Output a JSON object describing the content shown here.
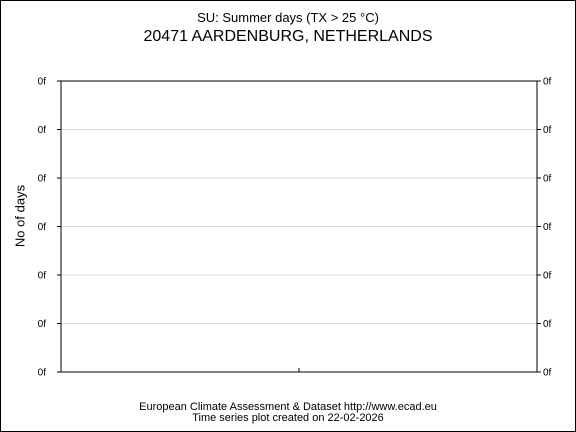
{
  "chart_data": {
    "type": "bar",
    "title": "SU: Summer days (TX > 25 °C)",
    "subtitle": "20471 AARDENBURG, NETHERLANDS",
    "ylabel": "No of days",
    "xlabel": "",
    "y_tick_labels": [
      "0f",
      "0f",
      "0f",
      "0f",
      "0f",
      "0f",
      "0f"
    ],
    "categories": [],
    "values": [],
    "grid": true,
    "legend": "none"
  },
  "footer": {
    "line1": "European Climate Assessment & Dataset  http://www.ecad.eu",
    "line2": "Time series plot created on 22-02-2026"
  },
  "colors": {
    "grid": "#d9d9d9",
    "axis": "#000000"
  }
}
